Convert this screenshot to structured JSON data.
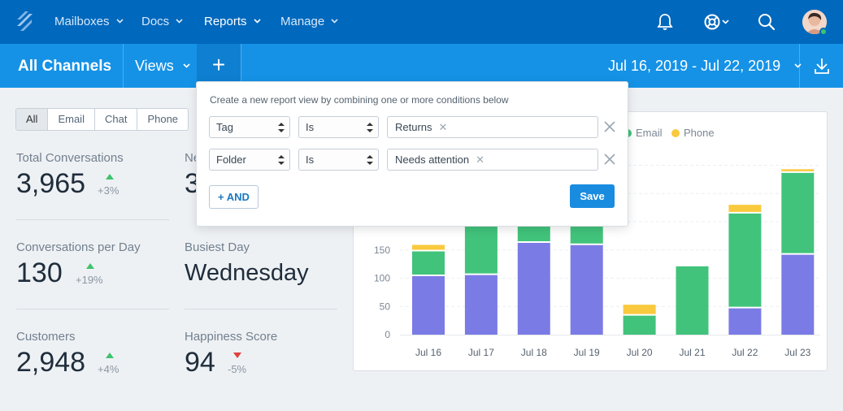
{
  "nav": {
    "items": [
      {
        "label": "Mailboxes"
      },
      {
        "label": "Docs"
      },
      {
        "label": "Reports"
      },
      {
        "label": "Manage"
      }
    ],
    "icons": [
      "bell-icon",
      "help-lifebuoy-icon",
      "search-icon"
    ]
  },
  "subnav": {
    "title": "All Channels",
    "views_label": "Views",
    "add_label": "+",
    "date_range": "Jul 16, 2019 - Jul 22, 2019"
  },
  "filters": {
    "tabs": [
      "All",
      "Email",
      "Chat",
      "Phone"
    ],
    "active": "All"
  },
  "stats": {
    "total_conversations": {
      "label": "Total Conversations",
      "value": "3,965",
      "change": "+3%"
    },
    "new_conversations": {
      "label": "Ne",
      "value": "3"
    },
    "conversations_per_day": {
      "label": "Conversations per Day",
      "value": "130",
      "change": "+19%"
    },
    "busiest_day": {
      "label": "Busiest Day",
      "value": "Wednesday"
    },
    "customers": {
      "label": "Customers",
      "value": "2,948",
      "change": "+4%"
    },
    "happiness_score": {
      "label": "Happiness Score",
      "value": "94",
      "change": "-5%"
    }
  },
  "popover": {
    "description": "Create a new report view by combining one or more conditions below",
    "conditions": [
      {
        "field": "Tag",
        "operator": "Is",
        "value": "Returns"
      },
      {
        "field": "Folder",
        "operator": "Is",
        "value": "Needs attention"
      }
    ],
    "and_label": "+ AND",
    "save_label": "Save"
  },
  "colors": {
    "chat": "#7b7be6",
    "email": "#41c37b",
    "phone": "#f9c93e",
    "nav": "#0068bd",
    "subnav": "#1592e6"
  },
  "chart_data": {
    "type": "bar",
    "stacked": true,
    "categories": [
      "Jul 16",
      "Jul 17",
      "Jul 18",
      "Jul 19",
      "Jul 20",
      "Jul 21",
      "Jul 22",
      "Jul 23"
    ],
    "series": [
      {
        "name": "Email",
        "values": [
          44,
          115,
          140,
          145,
          35,
          121,
          168,
          145
        ]
      },
      {
        "name": "Phone",
        "values": [
          10,
          0,
          0,
          0,
          18,
          0,
          14,
          5
        ]
      }
    ],
    "unnamed_series_values": [
      105,
      107,
      164,
      160,
      0,
      0,
      48,
      143
    ],
    "yticks": [
      0,
      50,
      100,
      150,
      200
    ],
    "ylim": [
      0,
      300
    ],
    "legend": [
      "Email",
      "Phone"
    ],
    "legend_position": "top-right",
    "grid": true
  }
}
